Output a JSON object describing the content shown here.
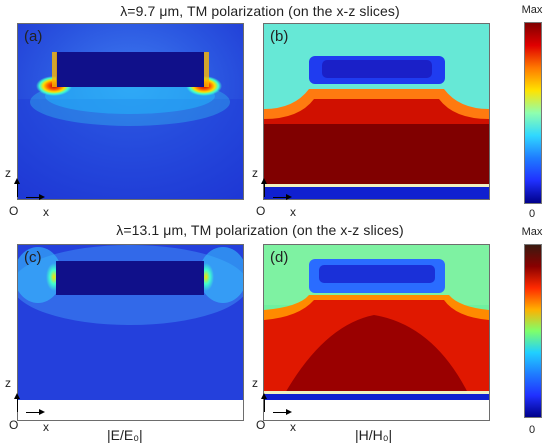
{
  "row1": {
    "title": "λ=9.7 μm, TM polarization (on the x-z slices)",
    "panel_left_label": "(a)",
    "panel_right_label": "(b)"
  },
  "row2": {
    "title": "λ=13.1 μm, TM polarization (on the x-z slices)",
    "panel_left_label": "(c)",
    "panel_right_label": "(d)"
  },
  "axes": {
    "origin": "O",
    "x": "x",
    "z": "z"
  },
  "colorbar": {
    "max_label": "Max",
    "min_label": "0"
  },
  "quantities": {
    "electric": "|E/E₀|",
    "magnetic": "|H/H₀|"
  }
}
